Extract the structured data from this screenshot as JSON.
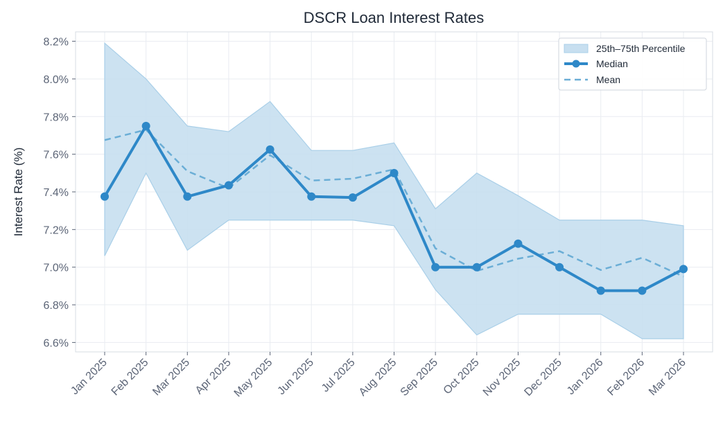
{
  "chart_data": {
    "type": "line",
    "title": "DSCR Loan Interest Rates",
    "xlabel": "",
    "ylabel": "Interest Rate (%)",
    "categories": [
      "Jan 2025",
      "Feb 2025",
      "Mar 2025",
      "Apr 2025",
      "May 2025",
      "Jun 2025",
      "Jul 2025",
      "Aug 2025",
      "Sep 2025",
      "Oct 2025",
      "Nov 2025",
      "Dec 2025",
      "Jan 2026",
      "Feb 2026",
      "Mar 2026"
    ],
    "ylim": [
      6.55,
      8.25
    ],
    "yticks": [
      6.6,
      6.8,
      7.0,
      7.2,
      7.4,
      7.6,
      7.8,
      8.0,
      8.2
    ],
    "ytick_labels": [
      "6.6%",
      "6.8%",
      "7.0%",
      "7.2%",
      "7.4%",
      "7.6%",
      "7.8%",
      "8.0%",
      "8.2%"
    ],
    "grid": true,
    "legend_position": "top-right",
    "series": [
      {
        "name": "25th–75th Percentile",
        "kind": "band",
        "lower": [
          7.06,
          7.5,
          7.09,
          7.25,
          7.25,
          7.25,
          7.25,
          7.22,
          6.88,
          6.64,
          6.75,
          6.75,
          6.75,
          6.62,
          6.62
        ],
        "upper": [
          8.19,
          8.0,
          7.75,
          7.72,
          7.88,
          7.62,
          7.62,
          7.66,
          7.31,
          7.5,
          7.38,
          7.25,
          7.25,
          7.25,
          7.22
        ],
        "color": "#c7dff0"
      },
      {
        "name": "Median",
        "kind": "line-markers",
        "values": [
          7.375,
          7.75,
          7.375,
          7.435,
          7.625,
          7.375,
          7.37,
          7.5,
          7.0,
          7.0,
          7.125,
          7.0,
          6.875,
          6.875,
          6.99
        ],
        "color": "#2e88c8"
      },
      {
        "name": "Mean",
        "kind": "dashed",
        "values": [
          7.675,
          7.73,
          7.51,
          7.42,
          7.595,
          7.46,
          7.47,
          7.52,
          7.1,
          6.98,
          7.045,
          7.085,
          6.985,
          7.05,
          6.95
        ],
        "color": "#6baed6"
      }
    ]
  }
}
